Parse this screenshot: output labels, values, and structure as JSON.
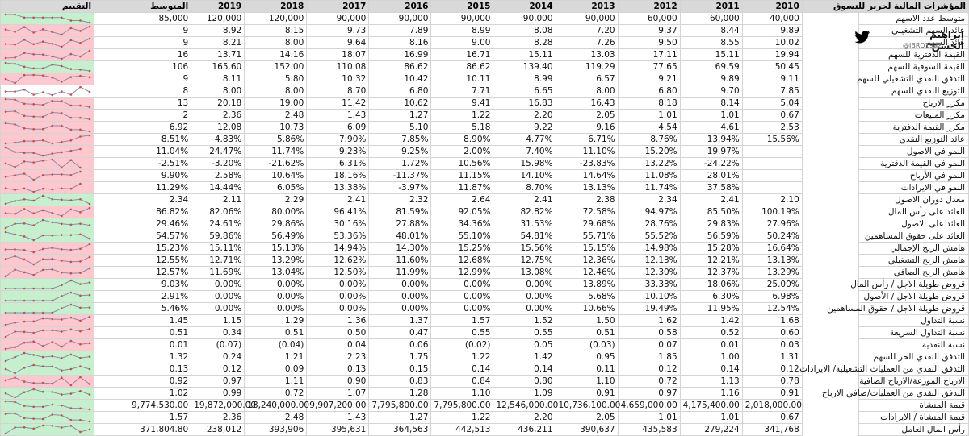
{
  "table": {
    "title": "المؤشرات المالية لجرير للتسوق",
    "year_headers": [
      "2010",
      "2011",
      "2012",
      "2013",
      "2014",
      "2015",
      "2016",
      "2017",
      "2018",
      "2019"
    ],
    "avg_header": "المتوسط",
    "rating_header": "التقييم",
    "rows": [
      {
        "label": "متوسط عدد الاسهم",
        "values": [
          "40,000",
          "60,000",
          "60,000",
          "90,000",
          "90,000",
          "90,000",
          "90,000",
          "90,000",
          "120,000",
          "120,000"
        ],
        "avg": "85,000",
        "trend": "up",
        "spark": [
          40,
          60,
          60,
          90,
          90,
          90,
          90,
          90,
          120,
          120
        ]
      },
      {
        "label": "عائد السهم التشغيلي",
        "values": [
          "9.89",
          "8.44",
          "9.37",
          "7.20",
          "8.08",
          "8.99",
          "7.89",
          "9.73",
          "8.15",
          "8.92"
        ],
        "avg": "9",
        "trend": "down",
        "spark": [
          9.89,
          8.44,
          9.37,
          7.2,
          8.08,
          8.99,
          7.89,
          9.73,
          8.15,
          8.92
        ]
      },
      {
        "label": "عائد السهم",
        "values": [
          "10.02",
          "8.55",
          "9.50",
          "7.26",
          "8.28",
          "9.00",
          "8.16",
          "9.64",
          "8.00",
          "8.21"
        ],
        "avg": "9",
        "trend": "down",
        "spark": [
          10.02,
          8.55,
          9.5,
          7.26,
          8.28,
          9.0,
          8.16,
          9.64,
          8.0,
          8.21
        ]
      },
      {
        "label": "القيمة الدفترية للسهم",
        "values": [
          "19.94",
          "15.11",
          "17.11",
          "13.03",
          "15.11",
          "16.71",
          "16.99",
          "18.07",
          "14.16",
          "13.71"
        ],
        "avg": "16",
        "trend": "down",
        "spark": [
          19.94,
          15.11,
          17.11,
          13.03,
          15.11,
          16.71,
          16.99,
          18.07,
          14.16,
          13.71
        ]
      },
      {
        "label": "القيمة السوقية للسهم",
        "values": [
          "50.45",
          "69.59",
          "77.65",
          "119.29",
          "139.40",
          "86.62",
          "86.62",
          "110.08",
          "152.00",
          "165.60"
        ],
        "avg": "106",
        "trend": "up",
        "spark": [
          50.45,
          69.59,
          77.65,
          119.29,
          139.4,
          86.62,
          86.62,
          110.08,
          152.0,
          165.6
        ]
      },
      {
        "label": "التدفق النقدي التشغيلي للسهم",
        "values": [
          "9.11",
          "9.89",
          "9.21",
          "6.57",
          "8.99",
          "10.11",
          "10.42",
          "10.32",
          "5.80",
          "8.11"
        ],
        "avg": "9",
        "trend": "down",
        "spark": [
          9.11,
          9.89,
          9.21,
          6.57,
          8.99,
          10.11,
          10.42,
          10.32,
          5.8,
          8.11
        ]
      },
      {
        "label": "التوزيع النقدي للسهم",
        "values": [
          "7.85",
          "9.70",
          "6.80",
          "8.00",
          "6.65",
          "7.71",
          "6.80",
          "8.70",
          "8.00",
          "8.00"
        ],
        "avg": "8",
        "trend": "flat",
        "spark": [
          7.85,
          9.7,
          6.8,
          8.0,
          6.65,
          7.71,
          6.8,
          8.7,
          8.0,
          8.0
        ]
      },
      {
        "label": "مكرر الارباح",
        "values": [
          "5.04",
          "8.14",
          "8.18",
          "16.43",
          "16.83",
          "9.41",
          "10.62",
          "11.42",
          "19.00",
          "20.18"
        ],
        "avg": "13",
        "trend": "down",
        "spark": [
          5.04,
          8.14,
          8.18,
          16.43,
          16.83,
          9.41,
          10.62,
          11.42,
          19.0,
          20.18
        ]
      },
      {
        "label": "مكرر المبيعات",
        "values": [
          "0.67",
          "1.01",
          "1.01",
          "2.05",
          "2.20",
          "1.22",
          "1.27",
          "1.43",
          "2.48",
          "2.36"
        ],
        "avg": "2",
        "trend": "down",
        "spark": [
          0.67,
          1.01,
          1.01,
          2.05,
          2.2,
          1.22,
          1.27,
          1.43,
          2.48,
          2.36
        ]
      },
      {
        "label": "مكرر القيمة الدفترية",
        "values": [
          "2.53",
          "4.61",
          "4.54",
          "9.16",
          "9.22",
          "5.18",
          "5.10",
          "6.09",
          "10.73",
          "12.08"
        ],
        "avg": "6.92",
        "trend": "down",
        "spark": [
          2.53,
          4.61,
          4.54,
          9.16,
          9.22,
          5.18,
          5.1,
          6.09,
          10.73,
          12.08
        ]
      },
      {
        "label": "عائد التوزيع النقدي",
        "values": [
          "15.56%",
          "13.94%",
          "8.76%",
          "6.71%",
          "4.77%",
          "8.90%",
          "7.85%",
          "7.90%",
          "5.86%",
          "4.83%"
        ],
        "avg": "8.51%",
        "trend": "down",
        "spark": [
          15.56,
          13.94,
          8.76,
          6.71,
          4.77,
          8.9,
          7.85,
          7.9,
          5.86,
          4.83
        ]
      },
      {
        "label": "النمو في الاصول",
        "values": [
          "",
          "19.97%",
          "15.20%",
          "11.10%",
          "7.40%",
          "2.00%",
          "9.25%",
          "9.23%",
          "11.74%",
          "24.47%"
        ],
        "avg": "11.04%",
        "trend": "down",
        "spark": [
          null,
          19.97,
          15.2,
          11.1,
          7.4,
          2.0,
          9.25,
          9.23,
          11.74,
          24.47
        ]
      },
      {
        "label": "النمو في القيمة الدفترية",
        "values": [
          "",
          "-24.22%",
          "13.22%",
          "-23.83%",
          "15.98%",
          "10.56%",
          "1.72%",
          "6.31%",
          "-21.62%",
          "-3.20%"
        ],
        "avg": "-2.51%",
        "trend": "down",
        "spark": [
          null,
          -24.22,
          13.22,
          -23.83,
          15.98,
          10.56,
          1.72,
          6.31,
          -21.62,
          -3.2
        ]
      },
      {
        "label": "النمو في الأرباح",
        "values": [
          "",
          "28.01%",
          "11.08%",
          "14.64%",
          "14.10%",
          "11.15%",
          "-11.37%",
          "18.16%",
          "10.64%",
          "2.58%"
        ],
        "avg": "9.90%",
        "trend": "down",
        "spark": [
          null,
          28.01,
          11.08,
          14.64,
          14.1,
          11.15,
          -11.37,
          18.16,
          10.64,
          2.58
        ]
      },
      {
        "label": "النمو في الايرادات",
        "values": [
          "",
          "37.58%",
          "11.74%",
          "13.13%",
          "8.70%",
          "11.87%",
          "-3.97%",
          "13.38%",
          "6.05%",
          "14.44%"
        ],
        "avg": "11.29%",
        "trend": "down",
        "spark": [
          null,
          37.58,
          11.74,
          13.13,
          8.7,
          11.87,
          -3.97,
          13.38,
          6.05,
          14.44
        ]
      },
      {
        "label": "معدل دوران الاصول",
        "values": [
          "2.10",
          "2.41",
          "2.34",
          "2.38",
          "2.41",
          "2.64",
          "2.32",
          "2.41",
          "2.29",
          "2.11"
        ],
        "avg": "2.34",
        "trend": "up",
        "spark": [
          2.1,
          2.41,
          2.34,
          2.38,
          2.41,
          2.64,
          2.32,
          2.41,
          2.29,
          2.11
        ]
      },
      {
        "label": "العائد على رأس المال",
        "values": [
          "100.19%",
          "85.50%",
          "94.97%",
          "72.58%",
          "82.82%",
          "92.05%",
          "81.59%",
          "96.41%",
          "80.00%",
          "82.06%"
        ],
        "avg": "86.82%",
        "trend": "down",
        "spark": [
          100.19,
          85.5,
          94.97,
          72.58,
          82.82,
          92.05,
          81.59,
          96.41,
          80.0,
          82.06
        ]
      },
      {
        "label": "العائد على الاصول",
        "values": [
          "27.96%",
          "29.83%",
          "28.76%",
          "29.68%",
          "31.53%",
          "34.36%",
          "27.88%",
          "30.16%",
          "29.86%",
          "24.61%"
        ],
        "avg": "29.46%",
        "trend": "up",
        "spark": [
          27.96,
          29.83,
          28.76,
          29.68,
          31.53,
          34.36,
          27.88,
          30.16,
          29.86,
          24.61
        ]
      },
      {
        "label": "العائد على حقوق المساهمين",
        "values": [
          "50.24%",
          "56.59%",
          "55.52%",
          "55.71%",
          "54.81%",
          "55.10%",
          "48.01%",
          "53.36%",
          "56.49%",
          "59.86%"
        ],
        "avg": "54.57%",
        "trend": "up",
        "spark": [
          50.24,
          56.59,
          55.52,
          55.71,
          54.81,
          55.1,
          48.01,
          53.36,
          56.49,
          59.86
        ]
      },
      {
        "label": "هامش الربح الإجمالي",
        "values": [
          "16.64%",
          "15.28%",
          "14.98%",
          "15.15%",
          "15.56%",
          "15.25%",
          "14.30%",
          "14.94%",
          "15.13%",
          "15.11%"
        ],
        "avg": "15.23%",
        "trend": "down",
        "spark": [
          16.64,
          15.28,
          14.98,
          15.15,
          15.56,
          15.25,
          14.3,
          14.94,
          15.13,
          15.11
        ]
      },
      {
        "label": "هامش الربح التشغيلي",
        "values": [
          "13.13%",
          "12.21%",
          "12.13%",
          "12.36%",
          "12.75%",
          "12.68%",
          "11.60%",
          "12.62%",
          "13.29%",
          "12.71%"
        ],
        "avg": "12.55%",
        "trend": "down",
        "spark": [
          13.13,
          12.21,
          12.13,
          12.36,
          12.75,
          12.68,
          11.6,
          12.62,
          13.29,
          12.71
        ]
      },
      {
        "label": "هامش الربح الصافي",
        "values": [
          "13.29%",
          "12.37%",
          "12.30%",
          "12.46%",
          "13.08%",
          "12.99%",
          "11.99%",
          "12.50%",
          "13.04%",
          "11.69%"
        ],
        "avg": "12.57%",
        "trend": "down",
        "spark": [
          13.29,
          12.37,
          12.3,
          12.46,
          13.08,
          12.99,
          11.99,
          12.5,
          13.04,
          11.69
        ]
      },
      {
        "label": "قروض طويلة الاجل / رأس المال",
        "values": [
          "25.00%",
          "18.06%",
          "33.33%",
          "13.89%",
          "0.00%",
          "0.00%",
          "0.00%",
          "0.00%",
          "0.00%",
          "0.00%"
        ],
        "avg": "9.03%",
        "trend": "up",
        "spark": [
          25.0,
          18.06,
          33.33,
          13.89,
          0,
          0,
          0,
          0,
          0,
          0
        ]
      },
      {
        "label": "قروض طويلة الاجل  / الأصول",
        "values": [
          "6.98%",
          "6.30%",
          "10.10%",
          "5.68%",
          "0.00%",
          "0.00%",
          "0.00%",
          "0.00%",
          "0.00%",
          "0.00%"
        ],
        "avg": "2.91%",
        "trend": "up",
        "spark": [
          6.98,
          6.3,
          10.1,
          5.68,
          0,
          0,
          0,
          0,
          0,
          0
        ]
      },
      {
        "label": "قروض طويلة الاجل  / حقوق المساهمين",
        "values": [
          "12.54%",
          "11.95%",
          "19.49%",
          "10.66%",
          "0.00%",
          "0.00%",
          "0.00%",
          "0.00%",
          "0.00%",
          "0.00%"
        ],
        "avg": "5.46%",
        "trend": "up",
        "spark": [
          12.54,
          11.95,
          19.49,
          10.66,
          0,
          0,
          0,
          0,
          0,
          0
        ]
      },
      {
        "label": "نسبة التداول",
        "values": [
          "1.68",
          "1.42",
          "1.62",
          "1.50",
          "1.52",
          "1.57",
          "1.37",
          "1.36",
          "1.29",
          "1.15"
        ],
        "avg": "1.45",
        "trend": "down",
        "spark": [
          1.68,
          1.42,
          1.62,
          1.5,
          1.52,
          1.57,
          1.37,
          1.36,
          1.29,
          1.15
        ]
      },
      {
        "label": "نسبة التداول السريعة",
        "values": [
          "0.60",
          "0.52",
          "0.58",
          "0.51",
          "0.55",
          "0.55",
          "0.47",
          "0.50",
          "0.51",
          "0.34"
        ],
        "avg": "0.51",
        "trend": "down",
        "spark": [
          0.6,
          0.52,
          0.58,
          0.51,
          0.55,
          0.55,
          0.47,
          0.5,
          0.51,
          0.34
        ]
      },
      {
        "label": "نسبة النقدية",
        "values": [
          "0.03",
          "0.01",
          "0.07",
          "(0.03)",
          "0.05",
          "(0.02)",
          "0.06",
          "0.04",
          "(0.04)",
          "(0.07)"
        ],
        "avg": "0.01",
        "trend": "down",
        "spark": [
          0.03,
          0.01,
          0.07,
          -0.03,
          0.05,
          -0.02,
          0.06,
          0.04,
          -0.04,
          -0.07
        ]
      },
      {
        "label": "التدفق النقدي الحر للسهم",
        "values": [
          "1.31",
          "1.00",
          "1.85",
          "0.95",
          "1.42",
          "1.22",
          "1.75",
          "2.23",
          "1.21",
          "0.24"
        ],
        "avg": "1.32",
        "trend": "up",
        "spark": [
          1.31,
          1.0,
          1.85,
          0.95,
          1.42,
          1.22,
          1.75,
          2.23,
          1.21,
          0.24
        ]
      },
      {
        "label": "التدفق النقدي من العمليات التشغيلية/ الايرادات",
        "values": [
          "0.12",
          "0.14",
          "0.12",
          "0.11",
          "0.14",
          "0.14",
          "0.15",
          "0.13",
          "0.09",
          "0.12"
        ],
        "avg": "0.13",
        "trend": "up",
        "spark": [
          0.12,
          0.14,
          0.12,
          0.11,
          0.14,
          0.14,
          0.15,
          0.13,
          0.09,
          0.12
        ]
      },
      {
        "label": "الارباح الموزعة/الارباح الصافية",
        "values": [
          "0.78",
          "1.13",
          "0.72",
          "1.10",
          "0.80",
          "0.84",
          "0.83",
          "0.90",
          "1.11",
          "0.97"
        ],
        "avg": "0.92",
        "trend": "down",
        "spark": [
          0.78,
          1.13,
          0.72,
          1.1,
          0.8,
          0.84,
          0.83,
          0.9,
          1.11,
          0.97
        ]
      },
      {
        "label": "التدفق النقدي من العمليات/صافي الارباح",
        "values": [
          "0.91",
          "1.16",
          "0.97",
          "0.91",
          "1.09",
          "1.10",
          "1.28",
          "1.07",
          "0.72",
          "0.99"
        ],
        "avg": "1.02",
        "trend": "up",
        "spark": [
          0.91,
          1.16,
          0.97,
          0.91,
          1.09,
          1.1,
          1.28,
          1.07,
          0.72,
          0.99
        ]
      },
      {
        "label": "قيمة المنشاة",
        "values": [
          "2,018,000.00",
          "4,175,400.00",
          "4,659,000.00",
          "10,736,100.00",
          "12,546,000.00",
          "7,795,800.00",
          "7,795,800.00",
          "9,907,200.00",
          "18,240,000.00",
          "19,872,000.00"
        ],
        "avg": "9,774,530.00",
        "trend": "up",
        "spark": [
          2018000,
          4175400,
          4659000,
          10736100,
          12546000,
          7795800,
          7795800,
          9907200,
          18240000,
          19872000
        ]
      },
      {
        "label": "قيمة المنشاة / الايرادات",
        "values": [
          "0.67",
          "1.01",
          "1.01",
          "2.05",
          "2.20",
          "1.22",
          "1.27",
          "1.43",
          "2.48",
          "2.36"
        ],
        "avg": "1.57",
        "trend": "up",
        "spark": [
          0.67,
          1.01,
          1.01,
          2.05,
          2.2,
          1.22,
          1.27,
          1.43,
          2.48,
          2.36
        ]
      },
      {
        "label": "رأس المال العامل",
        "values": [
          "341,768",
          "279,224",
          "435,583",
          "390,637",
          "436,211",
          "442,513",
          "364,563",
          "395,631",
          "393,906",
          "238,012"
        ],
        "avg": "371,804.80",
        "trend": "up",
        "spark": [
          341768,
          279224,
          435583,
          390637,
          436211,
          442513,
          364563,
          395631,
          393906,
          238012
        ]
      }
    ]
  },
  "brand": {
    "name": "إبراهيم الحسن",
    "handle": "@IBRQ1992",
    "icon": "twitter-bird-icon",
    "bird_color": "#1da1f2"
  },
  "colors": {
    "header_bg": "#d9d9d9",
    "rating_good": "#c6efce",
    "rating_bad": "#ffc7ce",
    "spark_line": "#8a8aa8",
    "spark_marker": "#c0504d",
    "negative_text": "#ff0000"
  }
}
